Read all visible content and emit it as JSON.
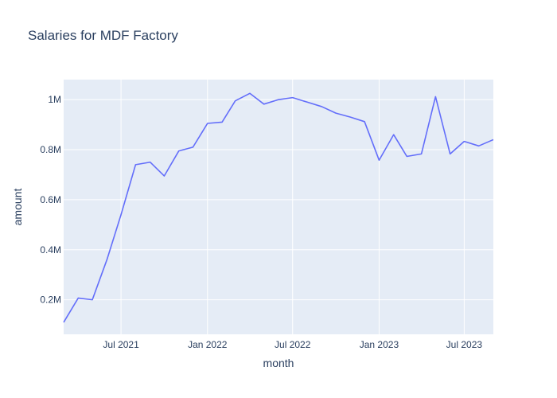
{
  "chart_data": {
    "type": "line",
    "title": "Salaries for MDF Factory",
    "xlabel": "month",
    "ylabel": "amount",
    "grid": true,
    "x_ticks": [
      "2021-07-01",
      "2022-01-01",
      "2022-07-01",
      "2023-01-01",
      "2023-07-01"
    ],
    "x_tick_labels": [
      "Jul 2021",
      "Jan 2022",
      "Jul 2022",
      "Jan 2023",
      "Jul 2023"
    ],
    "y_ticks": [
      200000,
      400000,
      600000,
      800000,
      1000000
    ],
    "y_tick_labels": [
      "0.2M",
      "0.4M",
      "0.6M",
      "0.8M",
      "1M"
    ],
    "xlim": [
      "2021-03-01",
      "2023-09-01"
    ],
    "ylim": [
      62000,
      1080000
    ],
    "series": [
      {
        "color": "#636efa",
        "x": [
          "2021-03-01",
          "2021-04-01",
          "2021-05-01",
          "2021-06-01",
          "2021-07-01",
          "2021-08-01",
          "2021-09-01",
          "2021-10-01",
          "2021-11-01",
          "2021-12-01",
          "2022-01-01",
          "2022-02-01",
          "2022-03-01",
          "2022-04-01",
          "2022-05-01",
          "2022-06-01",
          "2022-07-01",
          "2022-08-01",
          "2022-09-01",
          "2022-10-01",
          "2022-11-01",
          "2022-12-01",
          "2023-01-01",
          "2023-02-01",
          "2023-03-01",
          "2023-04-01",
          "2023-05-01",
          "2023-06-01",
          "2023-07-01",
          "2023-08-01",
          "2023-09-01"
        ],
        "y": [
          110000,
          207000,
          200000,
          360000,
          540000,
          740000,
          750000,
          695000,
          795000,
          810000,
          905000,
          910000,
          995000,
          1025000,
          982000,
          1000000,
          1008000,
          990000,
          972000,
          946000,
          930000,
          912000,
          758000,
          860000,
          773000,
          783000,
          1012000,
          783000,
          833000,
          815000,
          840000
        ]
      }
    ]
  }
}
